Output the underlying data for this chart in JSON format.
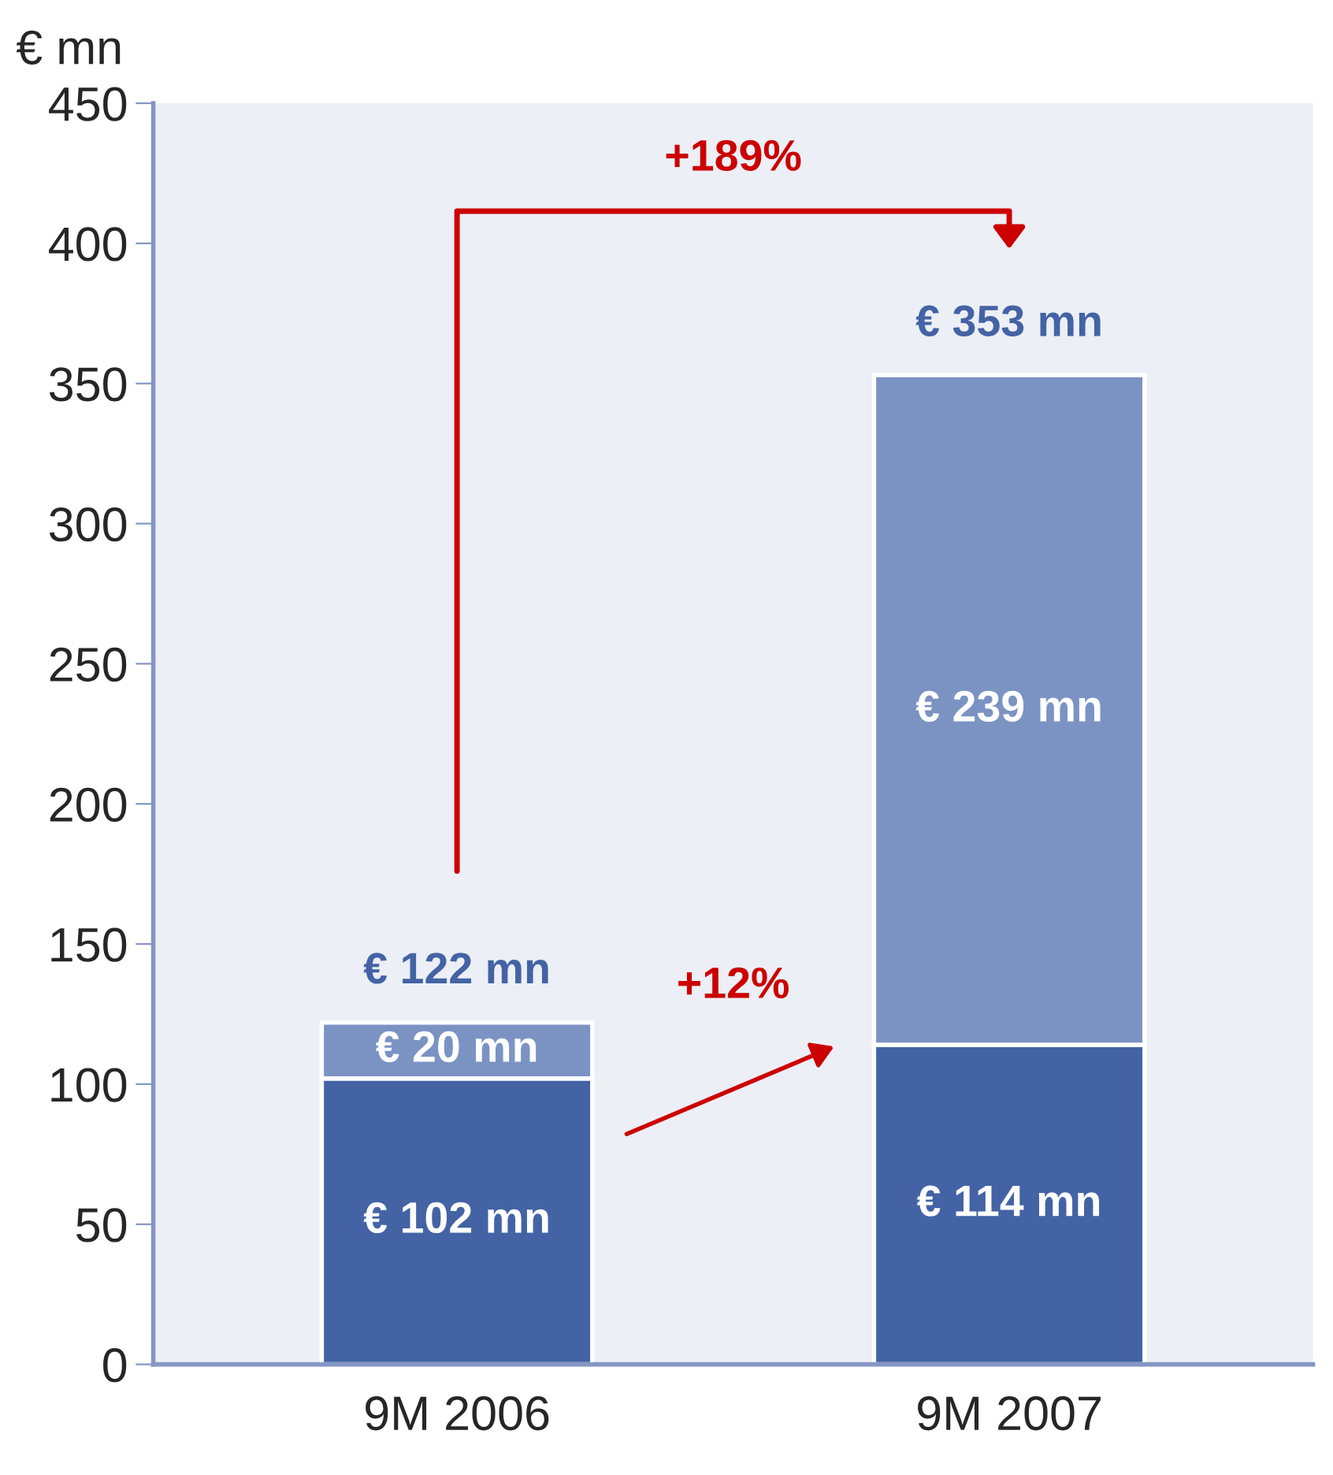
{
  "chart_data": {
    "type": "bar",
    "stacked": true,
    "ylabel": "€ mn",
    "categories": [
      "9M 2006",
      "9M 2007"
    ],
    "series": [
      {
        "color": "#4363a5",
        "values": [
          102,
          114
        ],
        "value_labels": [
          "€ 102 mn",
          "€ 114 mn"
        ]
      },
      {
        "color": "#7b93c3",
        "values": [
          20,
          239
        ],
        "value_labels": [
          "€ 20 mn",
          "€ 239 mn"
        ]
      }
    ],
    "totals": [
      "€ 122 mn",
      "€ 353 mn"
    ],
    "annotations": [
      "+189%",
      "+12%"
    ],
    "ylim": [
      0,
      450
    ],
    "yticks": [
      0,
      50,
      100,
      150,
      200,
      250,
      300,
      350,
      400,
      450
    ],
    "grid": false,
    "legend": false
  }
}
